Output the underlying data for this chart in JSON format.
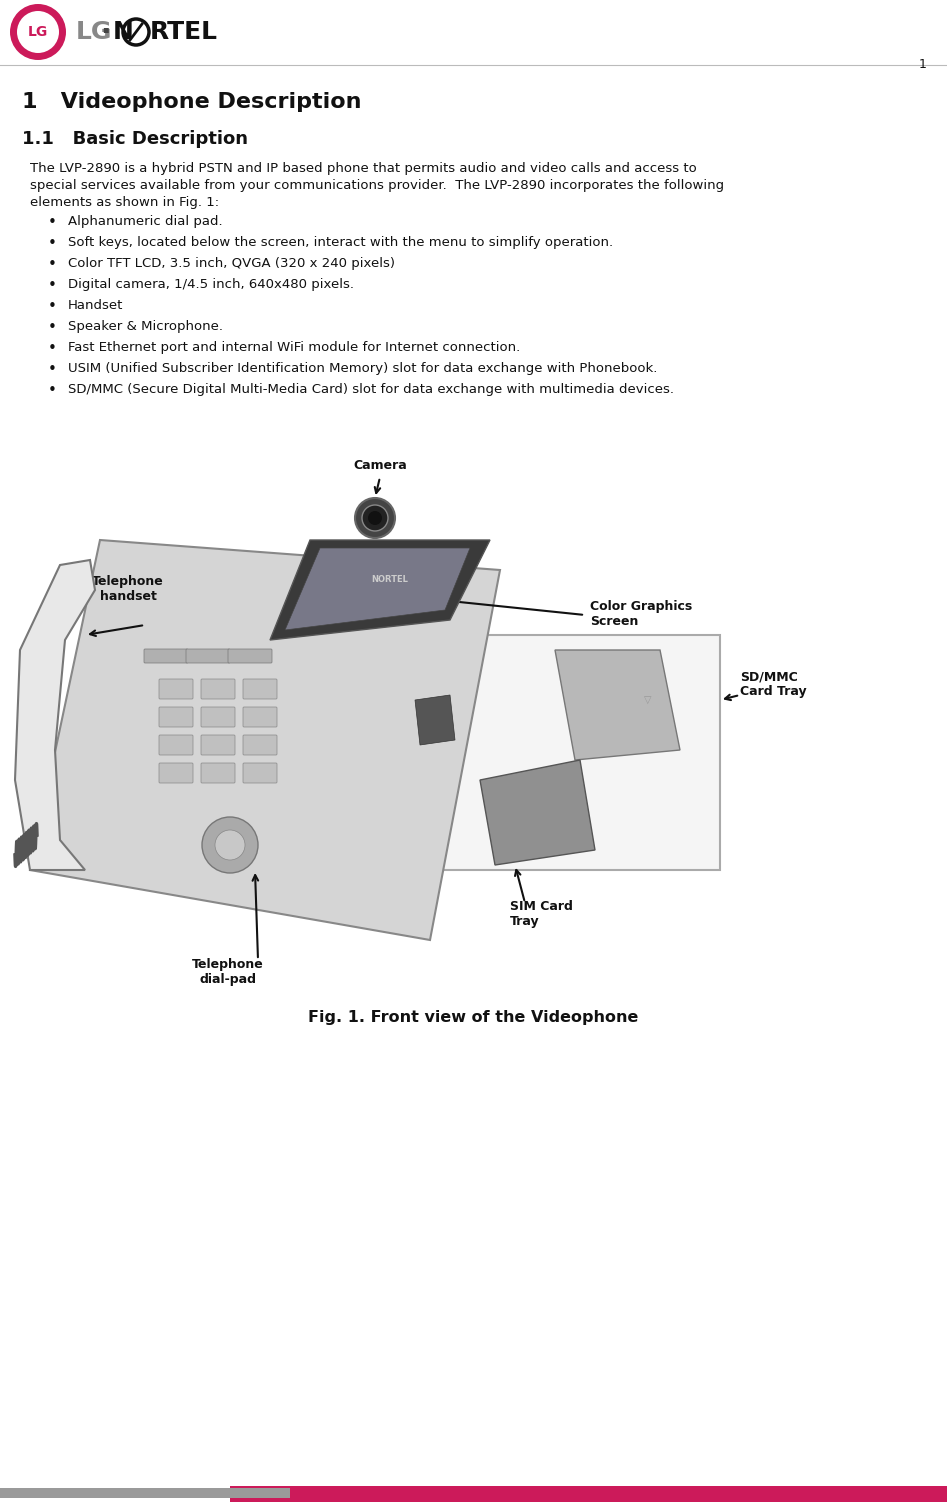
{
  "page_width": 9.47,
  "page_height": 15.08,
  "dpi": 100,
  "bg_color": "#ffffff",
  "page_number": "1",
  "section_title": "1   Videophone Description",
  "subsection_title": "1.1   Basic Description",
  "body_line1": "The LVP-2890 is a hybrid PSTN and IP based phone that permits audio and video calls and access to",
  "body_line2": "special services available from your communications provider.  The LVP-2890 incorporates the following",
  "body_line3": "elements as shown in Fig. 1:",
  "bullet_items": [
    "Alphanumeric dial pad.",
    "Soft keys, located below the screen, interact with the menu to simplify operation.",
    "Color TFT LCD, 3.5 inch, QVGA (320 x 240 pixels)",
    "Digital camera, 1/4.5 inch, 640x480 pixels.",
    "Handset",
    "Speaker & Microphone.",
    "Fast Ethernet port and internal WiFi module for Internet connection.",
    "USIM (Unified Subscriber Identification Memory) slot for data exchange with Phonebook.",
    "SD/MMC (Secure Digital Multi-Media Card) slot for data exchange with multimedia devices."
  ],
  "fig_caption": "Fig. 1. Front view of the Videophone",
  "label_camera": "Camera",
  "label_telephone_handset": "Telephone\nhandset",
  "label_color_graphics_screen": "Color Graphics\nScreen",
  "label_sdmmc": "SD/MMC\nCard Tray",
  "label_sim_card": "SIM Card\nTray",
  "label_dial_pad": "Telephone\ndial-pad",
  "footer_gray": "#9a9a9a",
  "footer_pink": "#cc1a5a",
  "header_line_color": "#bbbbbb",
  "logo_pink": "#cc1a5a",
  "text_color": "#111111",
  "font_size_body": 9.5,
  "font_size_section": 16,
  "font_size_subsection": 13,
  "font_size_annotation": 9,
  "font_size_page_num": 9
}
